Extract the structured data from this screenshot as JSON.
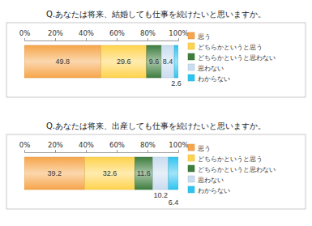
{
  "chart_data": [
    {
      "type": "bar",
      "title": "Q.あなたは将来、結婚しても仕事を続けたいと思いますか。",
      "orientation": "horizontal",
      "stacked": true,
      "data_labels": true,
      "tick_labels": "x",
      "legend": "right",
      "categories": [
        null
      ],
      "series": [
        {
          "name": "思う",
          "color": "#f7a54a",
          "values": [
            49.8
          ]
        },
        {
          "name": "どちらかというと思う",
          "color": "#ffd34d",
          "values": [
            29.6
          ]
        },
        {
          "name": "どちらかというと思わない",
          "color": "#3e7d3e",
          "values": [
            9.6
          ]
        },
        {
          "name": "思わない",
          "color": "#c9dcf0",
          "values": [
            8.4
          ]
        },
        {
          "name": "わからない",
          "color": "#2fc4f0",
          "values": [
            2.6
          ]
        }
      ],
      "xlim": [
        0,
        100
      ],
      "xticks": [
        {
          "value": 0,
          "label": "0%"
        },
        {
          "value": 20,
          "label": "20%"
        },
        {
          "value": 40,
          "label": "40%"
        },
        {
          "value": 60,
          "label": "60%"
        },
        {
          "value": 80,
          "label": "80%"
        },
        {
          "value": 100,
          "label": "100%"
        }
      ]
    },
    {
      "type": "bar",
      "title": "Q.あなたは将来、出産しても仕事を続けたいと思いますか。",
      "orientation": "horizontal",
      "stacked": true,
      "data_labels": true,
      "tick_labels": "x",
      "legend": "right",
      "categories": [
        null
      ],
      "series": [
        {
          "name": "思う",
          "color": "#f7a54a",
          "values": [
            39.2
          ]
        },
        {
          "name": "どちらかというと思う",
          "color": "#ffd34d",
          "values": [
            32.6
          ]
        },
        {
          "name": "どちらかというと思わない",
          "color": "#3e7d3e",
          "values": [
            11.6
          ]
        },
        {
          "name": "思わない",
          "color": "#c9dcf0",
          "values": [
            10.2
          ]
        },
        {
          "name": "わからない",
          "color": "#2fc4f0",
          "values": [
            6.4
          ]
        }
      ],
      "xlim": [
        0,
        100
      ],
      "xticks": [
        {
          "value": 0,
          "label": "0%"
        },
        {
          "value": 20,
          "label": "20%"
        },
        {
          "value": 40,
          "label": "40%"
        },
        {
          "value": 60,
          "label": "60%"
        },
        {
          "value": 80,
          "label": "80%"
        },
        {
          "value": 100,
          "label": "100%"
        }
      ]
    }
  ]
}
